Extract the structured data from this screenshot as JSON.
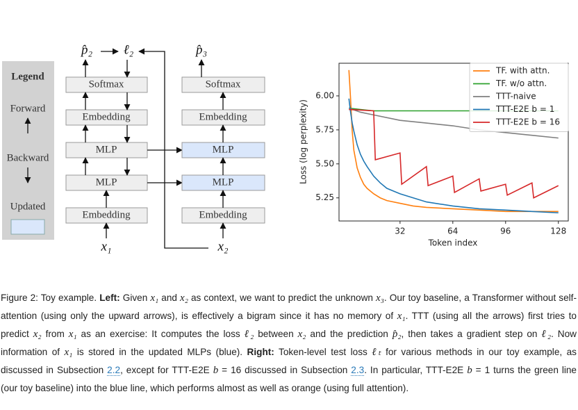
{
  "diagram": {
    "legend": {
      "title": "Legend",
      "forward": "Forward",
      "backward": "Backward",
      "updated": "Updated"
    },
    "left_column": [
      "Softmax",
      "Embedding",
      "MLP",
      "MLP",
      "Embedding"
    ],
    "right_column": [
      "Softmax",
      "Embedding",
      "MLP",
      "MLP",
      "Embedding"
    ],
    "labels": {
      "pred_left": "p̂₂",
      "loss": "ℓ₂",
      "pred_right": "p̂₃",
      "input_left": "x₁",
      "input_right": "x₂"
    }
  },
  "chart_data": {
    "type": "line",
    "xlabel": "Token index",
    "ylabel": "Loss (log perplexity)",
    "xlim": [
      -5,
      134
    ],
    "ylim": [
      5.08,
      6.24
    ],
    "xticks": [
      32,
      64,
      96,
      128
    ],
    "yticks": [
      5.25,
      {
        "value": 5.5,
        "label": "5.50"
      },
      5.75,
      {
        "value": 6.0,
        "label": "6.00"
      }
    ],
    "grid": false,
    "legend": "upper right",
    "series": [
      {
        "name": "TF. with attn.",
        "color": "#ff7f0e",
        "x": [
          1,
          2,
          3,
          4,
          6,
          8,
          10,
          12,
          16,
          20,
          24,
          32,
          40,
          48,
          64,
          80,
          96,
          112,
          128
        ],
        "values": [
          6.19,
          5.98,
          5.74,
          5.6,
          5.47,
          5.4,
          5.35,
          5.32,
          5.28,
          5.25,
          5.23,
          5.21,
          5.19,
          5.18,
          5.17,
          5.16,
          5.15,
          5.15,
          5.15
        ]
      },
      {
        "name": "TF. w/o attn.",
        "color": "#2ca02c",
        "x": [
          1,
          8,
          16,
          32,
          48,
          64,
          80,
          96,
          112,
          128
        ],
        "values": [
          5.91,
          5.9,
          5.89,
          5.89,
          5.89,
          5.89,
          5.89,
          5.89,
          5.89,
          5.89
        ]
      },
      {
        "name": "TTT-naive",
        "color": "#7f7f7f",
        "x": [
          1,
          8,
          16,
          32,
          48,
          64,
          80,
          96,
          112,
          128
        ],
        "values": [
          5.91,
          5.88,
          5.86,
          5.82,
          5.8,
          5.78,
          5.75,
          5.73,
          5.71,
          5.69
        ]
      },
      {
        "name": "TTT-E2E b = 1",
        "color": "#1f77b4",
        "x": [
          1,
          2,
          3,
          4,
          6,
          8,
          10,
          12,
          16,
          20,
          24,
          32,
          40,
          48,
          64,
          80,
          96,
          112,
          128
        ],
        "values": [
          5.98,
          5.88,
          5.8,
          5.74,
          5.64,
          5.57,
          5.52,
          5.48,
          5.41,
          5.36,
          5.32,
          5.28,
          5.25,
          5.22,
          5.19,
          5.17,
          5.16,
          5.15,
          5.14
        ]
      },
      {
        "name": "TTT-E2E b = 16",
        "color": "#d62728",
        "x": [
          1,
          16,
          17,
          32,
          33,
          48,
          49,
          64,
          65,
          80,
          81,
          96,
          97,
          112,
          113,
          128
        ],
        "values": [
          5.9,
          5.89,
          5.53,
          5.58,
          5.35,
          5.48,
          5.34,
          5.41,
          5.29,
          5.39,
          5.3,
          5.35,
          5.27,
          5.36,
          5.25,
          5.34
        ]
      }
    ]
  },
  "caption": {
    "runs": [
      "Figure 2: Toy example. ",
      {
        "text": "Left:",
        "style": "bold"
      },
      " Given ",
      {
        "text": "x₁",
        "style": "math"
      },
      " and ",
      {
        "text": "x₂",
        "style": "math"
      },
      " as context, we want to predict the unknown ",
      {
        "text": "x₃",
        "style": "math"
      },
      ". Our toy baseline, a Transformer without self-attention (using only the upward arrows), is effectively a bigram since it has no memory of ",
      {
        "text": "x₁",
        "style": "math"
      },
      ". TTT (using all the arrows) first tries to predict ",
      {
        "text": "x₂",
        "style": "math"
      },
      " from ",
      {
        "text": "x₁",
        "style": "math"
      },
      " as an exercise: It computes the loss ",
      {
        "text": "ℓ₂",
        "style": "math"
      },
      " between ",
      {
        "text": "x₂",
        "style": "math"
      },
      " and the prediction ",
      {
        "text": "p̂₂",
        "style": "math"
      },
      ", then takes a gradient step on ",
      {
        "text": "ℓ₂",
        "style": "math"
      },
      ". Now information of ",
      {
        "text": "x₁",
        "style": "math"
      },
      " is stored in the updated MLPs (blue). ",
      {
        "text": "Right:",
        "style": "bold"
      },
      " Token-level test loss ",
      {
        "text": "ℓₜ",
        "style": "math"
      },
      " for various methods in our toy example, as discussed in Subsection ",
      {
        "text": "2.2",
        "style": "link"
      },
      ", except for TTT-E2E ",
      {
        "text": "b",
        "style": "math"
      },
      " = 16 discussed in Subsection ",
      {
        "text": "2.3",
        "style": "link"
      },
      ". In particular, TTT-E2E ",
      {
        "text": "b",
        "style": "math"
      },
      " = 1 turns the green line (our toy baseline) into the blue line, which performs almost as well as orange (using full attention)."
    ]
  }
}
